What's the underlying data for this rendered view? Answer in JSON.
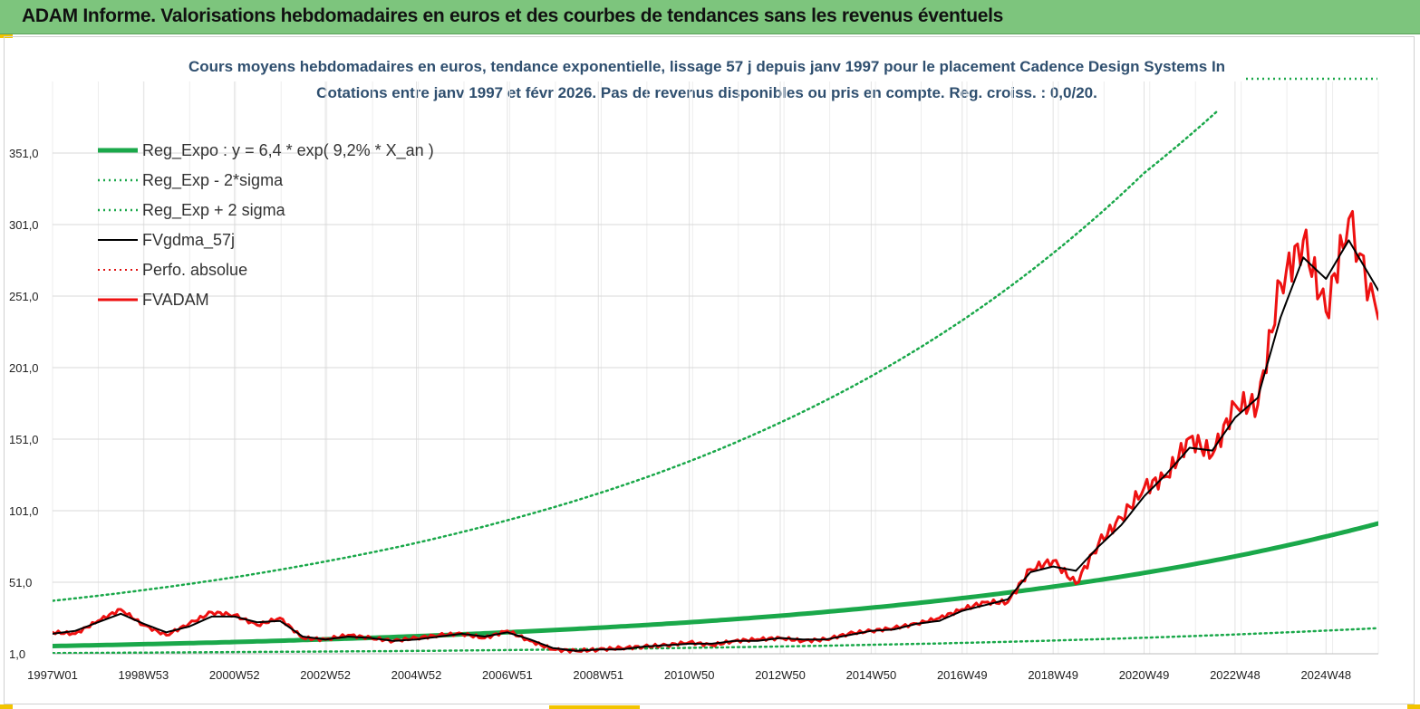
{
  "header": {
    "title": "ADAM Informe. Valorisations hebdomadaires en euros et des courbes de tendances sans les revenus éventuels"
  },
  "chart_data": {
    "type": "line",
    "title": "Cours moyens hebdomadaires en euros, tendance exponentielle, lissage 57 j depuis janv 1997  pour le placement Cadence Design Systems In",
    "subtitle": "Cotations entre janv 1997 et févr  2026. Pas de revenus disponibles ou pris en  compte. Reg. croiss. : 0,0/20.",
    "xlabel": "",
    "ylabel": "",
    "ylim": [
      1,
      386
    ],
    "xlim": [
      1997.0,
      2026.15
    ],
    "grid": true,
    "legend_position": "top-left",
    "y_ticks": [
      "1,0",
      "51,0",
      "101,0",
      "151,0",
      "201,0",
      "251,0",
      "301,0",
      "351,0"
    ],
    "y_tick_values": [
      1,
      51,
      101,
      151,
      201,
      251,
      301,
      351
    ],
    "x_ticks": [
      "1997W01",
      "1998W53",
      "2000W52",
      "2002W52",
      "2004W52",
      "2006W51",
      "2008W51",
      "2010W50",
      "2012W50",
      "2014W50",
      "2016W49",
      "2018W49",
      "2020W49",
      "2022W48",
      "2024W48"
    ],
    "x_tick_values": [
      1997.0,
      1999.0,
      2001.0,
      2003.0,
      2005.0,
      2007.0,
      2009.0,
      2011.0,
      2013.0,
      2015.0,
      2017.0,
      2019.0,
      2021.0,
      2023.0,
      2025.0
    ],
    "trend": {
      "a": 6.4,
      "rate": 0.092
    },
    "series": [
      {
        "name": "Reg_Expo : y = 6,4 * exp( 9,2% *  X_an )",
        "color": "#1aa84a",
        "style": "solid",
        "width": 5,
        "x": [
          1997.0,
          1999.0,
          2001.0,
          2003.0,
          2005.0,
          2007.0,
          2009.0,
          2011.0,
          2013.0,
          2015.0,
          2017.0,
          2019.0,
          2021.0,
          2023.0,
          2025.0,
          2026.15
        ],
        "values": [
          6.4,
          7.7,
          9.2,
          11.1,
          13.3,
          16.0,
          19.2,
          23.0,
          27.6,
          33.2,
          39.9,
          47.9,
          57.5,
          69.1,
          83.0,
          92.1
        ]
      },
      {
        "name": "Reg_Exp - 2*sigma",
        "color": "#1aa84a",
        "style": "dotted",
        "width": 2.5,
        "x": [
          1997.0,
          2001.0,
          2005.0,
          2009.0,
          2013.0,
          2017.0,
          2021.0,
          2025.0,
          2026.15
        ],
        "values": [
          1.5,
          2.2,
          3.0,
          4.3,
          6.1,
          8.6,
          12.2,
          17.2,
          18.9
        ]
      },
      {
        "name": "Reg_Exp + 2 sigma",
        "color": "#1aa84a",
        "style": "dotted",
        "width": 2.5,
        "x": [
          1997.0,
          1999.0,
          2001.0,
          2003.0,
          2005.0,
          2007.0,
          2009.0,
          2011.0,
          2013.0,
          2015.0,
          2017.0,
          2019.0,
          2021.0,
          2022.6
        ],
        "values": [
          38.0,
          45.5,
          54.5,
          65.5,
          78.5,
          94.3,
          113.0,
          135.5,
          162.6,
          195.0,
          234.0,
          281.0,
          337.0,
          380.0
        ]
      },
      {
        "name": "FVgdma_57j",
        "color": "#000000",
        "style": "solid",
        "width": 2,
        "x": [
          1997.0,
          1997.5,
          1998.0,
          1998.5,
          1999.0,
          1999.5,
          2000.0,
          2000.5,
          2001.0,
          2001.5,
          2002.0,
          2002.5,
          2003.0,
          2003.5,
          2004.0,
          2004.5,
          2005.0,
          2005.5,
          2006.0,
          2006.5,
          2007.0,
          2007.5,
          2008.0,
          2008.5,
          2009.0,
          2009.5,
          2010.0,
          2010.5,
          2011.0,
          2011.5,
          2012.0,
          2012.5,
          2013.0,
          2013.5,
          2014.0,
          2014.5,
          2015.0,
          2015.5,
          2016.0,
          2016.5,
          2017.0,
          2017.5,
          2018.0,
          2018.5,
          2019.0,
          2019.5,
          2020.0,
          2020.5,
          2021.0,
          2021.5,
          2022.0,
          2022.5,
          2023.0,
          2023.5,
          2024.0,
          2024.5,
          2025.0,
          2025.5,
          2026.15
        ],
        "values": [
          15,
          17,
          23,
          29,
          22,
          16,
          20,
          27,
          27,
          23,
          24,
          13,
          11,
          13,
          12,
          10,
          11,
          13,
          15,
          13,
          16,
          11,
          5,
          3,
          4,
          4,
          6,
          7,
          8,
          8,
          10,
          10,
          12,
          11,
          11,
          14,
          17,
          18,
          22,
          24,
          31,
          35,
          39,
          58,
          62,
          59,
          76,
          91,
          111,
          127,
          145,
          143,
          166,
          180,
          236,
          278,
          263,
          290,
          255
        ]
      },
      {
        "name": "Perfo. absolue",
        "color": "#e01010",
        "style": "dotted",
        "width": 2,
        "x": [],
        "values": []
      },
      {
        "name": "FVADAM",
        "color": "#ee1111",
        "style": "solid",
        "width": 3,
        "x": [
          1997.0,
          1997.5,
          1998.0,
          1998.5,
          1999.0,
          1999.5,
          2000.0,
          2000.5,
          2001.0,
          2001.5,
          2002.0,
          2002.5,
          2003.0,
          2003.5,
          2004.0,
          2004.5,
          2005.0,
          2005.5,
          2006.0,
          2006.5,
          2007.0,
          2007.5,
          2008.0,
          2008.5,
          2009.0,
          2009.5,
          2010.0,
          2010.5,
          2011.0,
          2011.5,
          2012.0,
          2012.5,
          2013.0,
          2013.5,
          2014.0,
          2014.5,
          2015.0,
          2015.5,
          2016.0,
          2016.5,
          2017.0,
          2017.5,
          2018.0,
          2018.5,
          2019.0,
          2019.5,
          2020.0,
          2020.5,
          2021.0,
          2021.5,
          2022.0,
          2022.5,
          2023.0,
          2023.5,
          2024.0,
          2024.5,
          2025.0,
          2025.5,
          2026.15
        ],
        "values": [
          16,
          15,
          24,
          32,
          21,
          14,
          22,
          30,
          28,
          21,
          26,
          12,
          11,
          14,
          12,
          10,
          12,
          14,
          15,
          12,
          17,
          10,
          4,
          3,
          4,
          5,
          6,
          7,
          9,
          7,
          10,
          11,
          12,
          10,
          11,
          15,
          17,
          19,
          22,
          26,
          32,
          37,
          37,
          60,
          66,
          50,
          78,
          96,
          117,
          125,
          152,
          140,
          175,
          175,
          260,
          290,
          240,
          305,
          235
        ]
      }
    ]
  },
  "legend": {
    "items": [
      {
        "label": "Reg_Expo : y = 6,4 * exp( 9,2% *  X_an )"
      },
      {
        "label": "Reg_Exp - 2*sigma"
      },
      {
        "label": "Reg_Exp + 2 sigma"
      },
      {
        "label": "FVgdma_57j"
      },
      {
        "label": "Perfo. absolue"
      },
      {
        "label": "FVADAM"
      }
    ]
  }
}
